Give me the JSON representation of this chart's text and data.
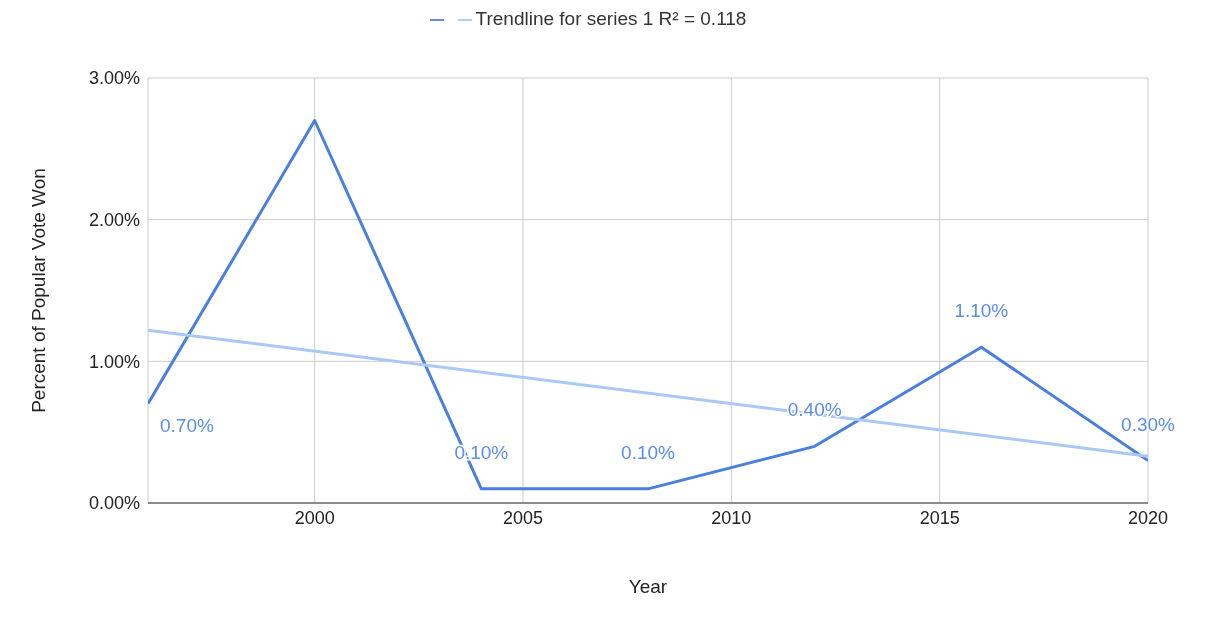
{
  "chart_data": {
    "type": "line",
    "xlabel": "Year",
    "ylabel": "Percent of Popular Vote Won",
    "x": [
      1996,
      2000,
      2004,
      2008,
      2012,
      2016,
      2020
    ],
    "series": [
      {
        "color": "#4a7fe0",
        "values": [
          0.7,
          2.7,
          0.1,
          0.1,
          0.4,
          1.1,
          0.3
        ],
        "value_labels": [
          "0.70%",
          null,
          "0.10%",
          "0.10%",
          "0.40%",
          "1.10%",
          "0.30%"
        ]
      },
      {
        "name": "Trendline for series 1 R² = 0.118",
        "color": "#a9c8f5",
        "x": [
          1996,
          2020
        ],
        "values": [
          1.22,
          0.33
        ]
      }
    ],
    "xlim": [
      1996,
      2020
    ],
    "xticks": [
      2000,
      2005,
      2010,
      2015,
      2020
    ],
    "ylim": [
      0,
      3
    ],
    "yticks": [
      {
        "value": 0,
        "label": "0.00%"
      },
      {
        "value": 1,
        "label": "1.00%"
      },
      {
        "value": 2,
        "label": "2.00%"
      },
      {
        "value": 3,
        "label": "3.00%"
      }
    ],
    "grid": true,
    "legend": "top",
    "marker": "none",
    "line_style": "solid"
  }
}
